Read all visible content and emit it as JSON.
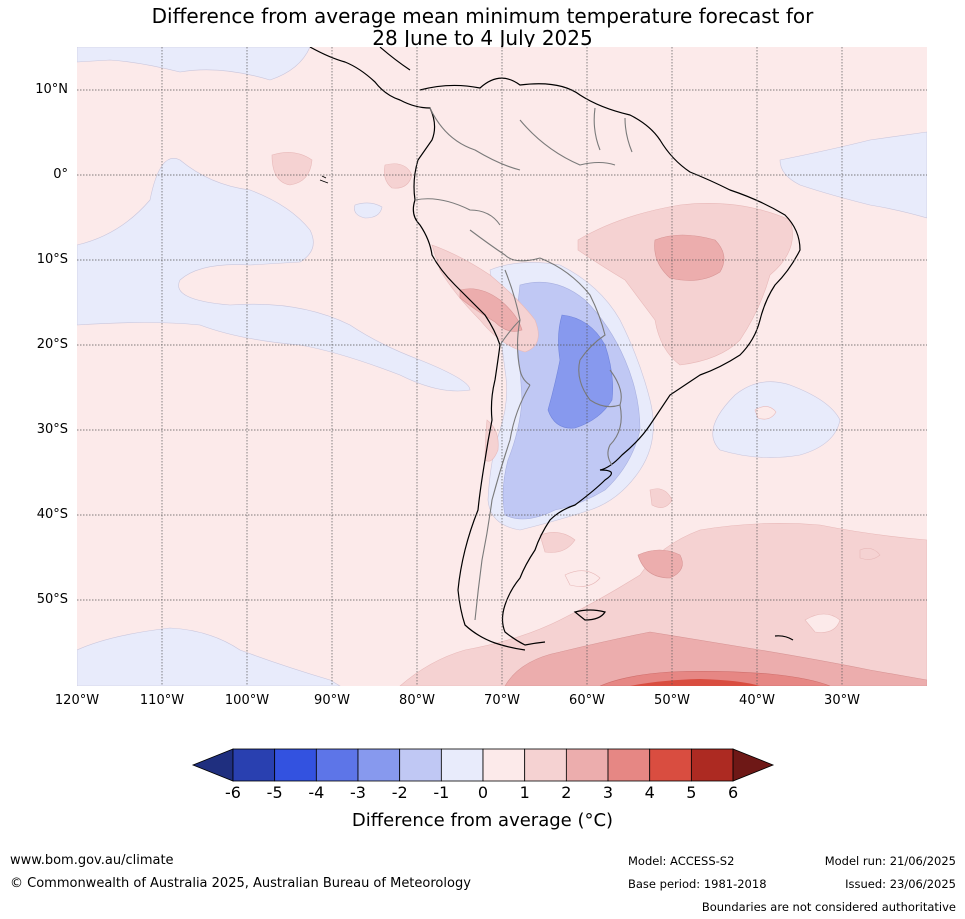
{
  "title_line1": "Difference from average mean minimum temperature forecast for",
  "title_line2": "28 June to 4 July 2025",
  "lat_labels": [
    "10°N",
    "0°",
    "10°S",
    "20°S",
    "30°S",
    "40°S",
    "50°S"
  ],
  "lon_labels": [
    "120°W",
    "110°W",
    "100°W",
    "90°W",
    "80°W",
    "70°W",
    "60°W",
    "50°W",
    "40°W",
    "30°W"
  ],
  "colorbar": {
    "ticks": [
      "-6",
      "-5",
      "-4",
      "-3",
      "-2",
      "-1",
      "0",
      "1",
      "2",
      "3",
      "4",
      "5",
      "6"
    ],
    "colors": [
      "#1f2f7f",
      "#2940b0",
      "#3352e0",
      "#5d75e8",
      "#8799ee",
      "#c0c8f4",
      "#e8ebfb",
      "#fceaea",
      "#f5d2d2",
      "#ecadad",
      "#e68784",
      "#d94d40",
      "#ad2a22",
      "#6e1816"
    ],
    "label": "Difference from average (°C)"
  },
  "footer": {
    "url": "www.bom.gov.au/climate",
    "copyright": "© Commonwealth of Australia 2025, Australian Bureau of Meteorology",
    "model": "Model: ACCESS-S2",
    "base_period": "Base period: 1981-2018",
    "model_run": "Model run: 21/06/2025",
    "issued": "Issued: 23/06/2025",
    "disclaimer": "Boundaries are not considered authoritative"
  }
}
